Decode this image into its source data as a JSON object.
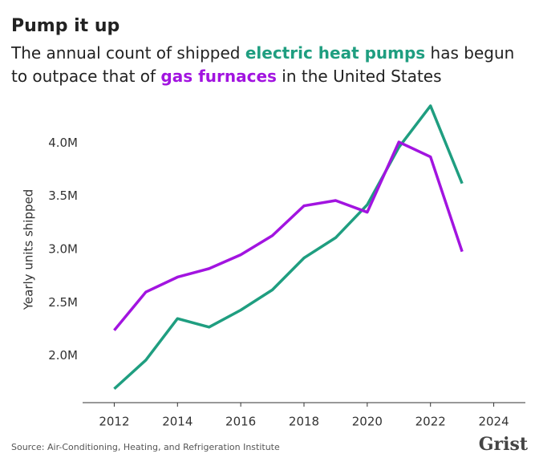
{
  "chart_data": {
    "type": "line",
    "title": "Pump it up",
    "subtitle_parts": [
      "The annual count of shipped ",
      " has begun",
      "to outpace that of ",
      " in the United States"
    ],
    "y_label": "Yearly units shipped",
    "source": "Source: Air-Conditioning, Heating, and Refrigeration Institute",
    "logo": "Grist",
    "x": [
      2012,
      2013,
      2014,
      2015,
      2016,
      2017,
      2018,
      2019,
      2020,
      2021,
      2022,
      2023
    ],
    "series": [
      {
        "name": "electric heat pumps",
        "color": "#1f9e80",
        "values": [
          1690000,
          1960000,
          2350000,
          2270000,
          2430000,
          2620000,
          2920000,
          3110000,
          3420000,
          3960000,
          4350000,
          3620000
        ]
      },
      {
        "name": "gas furnaces",
        "color": "#a214e0",
        "values": [
          2240000,
          2600000,
          2740000,
          2820000,
          2950000,
          3130000,
          3410000,
          3460000,
          3350000,
          4010000,
          3870000,
          2980000
        ]
      }
    ],
    "xlim": [
      2011,
      2025
    ],
    "xticks": [
      2012,
      2014,
      2016,
      2018,
      2020,
      2022,
      2024
    ],
    "ylim": [
      1560000,
      4440000
    ],
    "yticks": [
      {
        "value": 2000000,
        "label": "2.0M"
      },
      {
        "value": 2500000,
        "label": "2.5M"
      },
      {
        "value": 3000000,
        "label": "3.0M"
      },
      {
        "value": 3500000,
        "label": "3.5M"
      },
      {
        "value": 4000000,
        "label": "4.0M"
      }
    ],
    "grid": false
  }
}
